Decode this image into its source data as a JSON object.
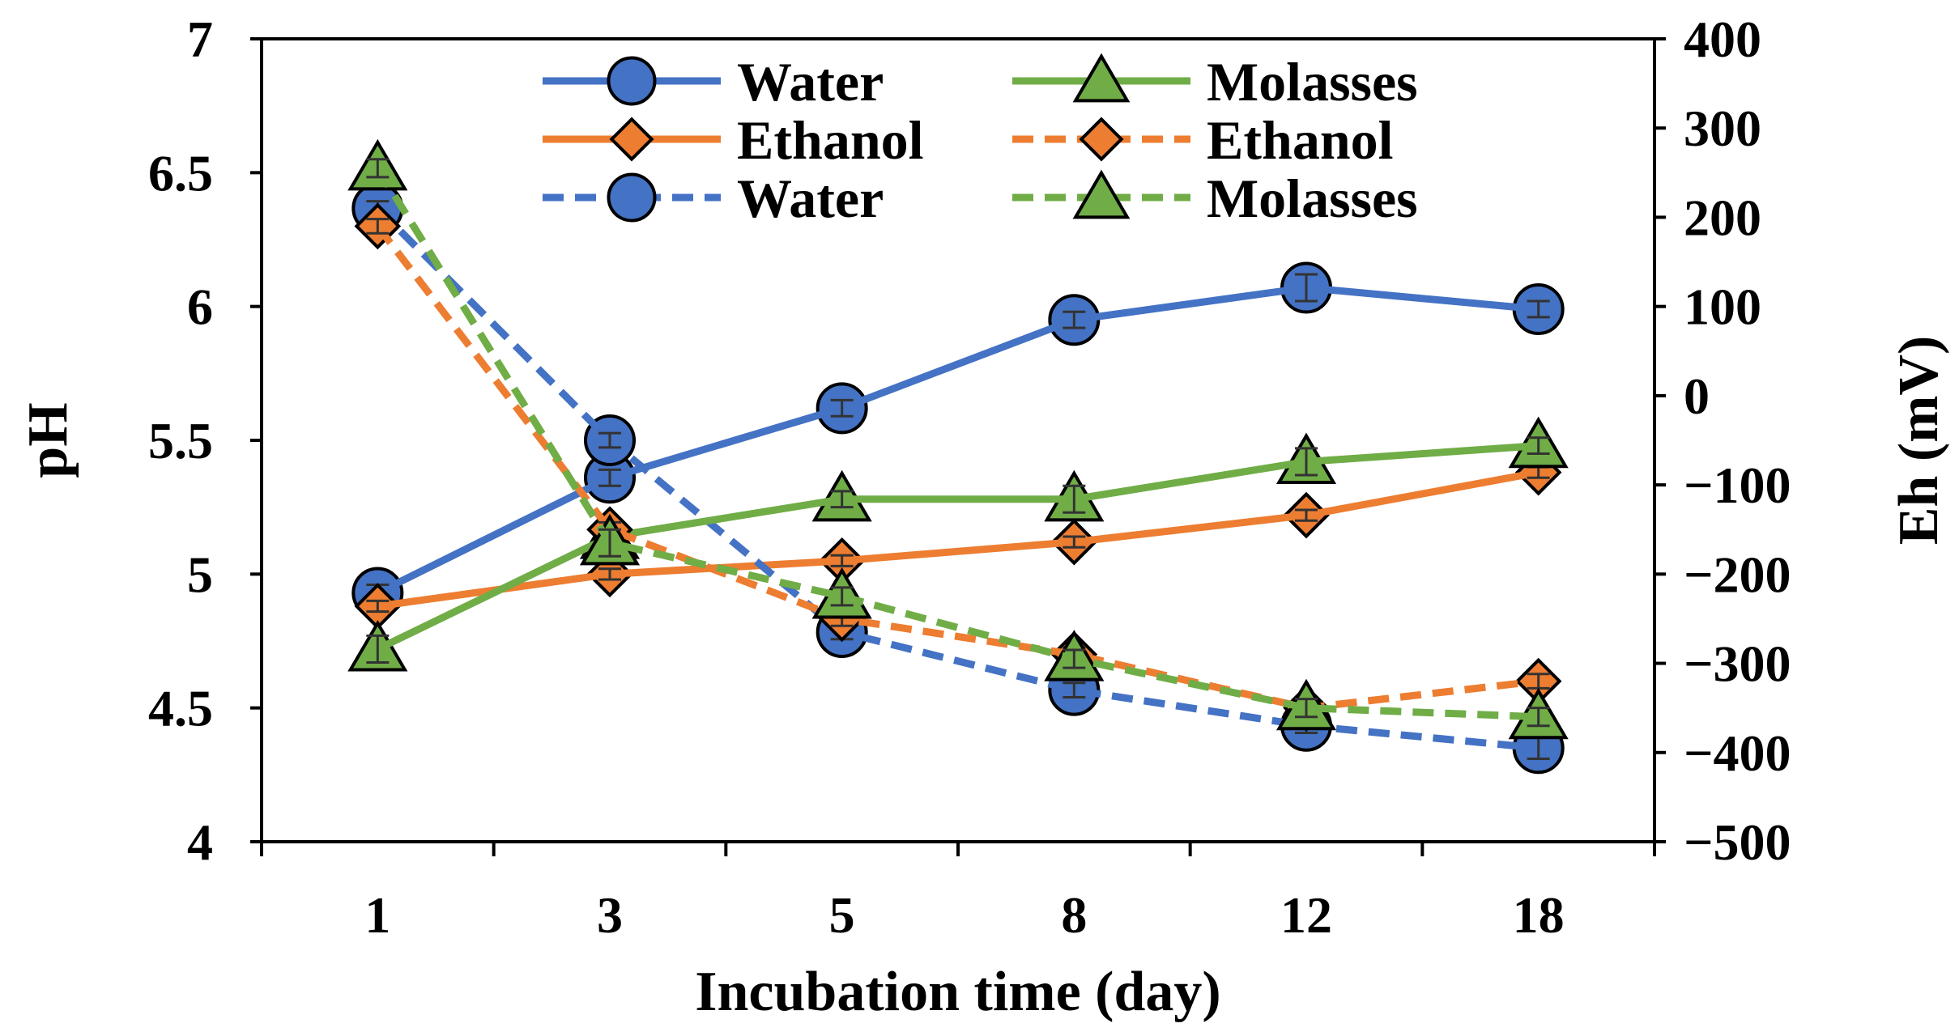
{
  "chart_data": {
    "type": "line",
    "title": "",
    "xlabel": "Incubation time (day)",
    "ylabel_left": "pH",
    "ylabel_right": "Eh (mV)",
    "categories": [
      "1",
      "3",
      "5",
      "8",
      "12",
      "18"
    ],
    "ylim_left": [
      4,
      7
    ],
    "ylim_right": [
      -500,
      400
    ],
    "yticks_left": [
      "4",
      "4.5",
      "5",
      "5.5",
      "6",
      "6.5",
      "7"
    ],
    "yticks_right": [
      "-500",
      "-400",
      "-300",
      "-200",
      "-100",
      "0",
      "100",
      "200",
      "300",
      "400"
    ],
    "grid": false,
    "legend": "top-center",
    "series": [
      {
        "name": "Water",
        "axis": "left",
        "style": "solid",
        "marker": "circle",
        "color": "#4472C4",
        "values": [
          4.93,
          5.36,
          5.62,
          5.95,
          6.07,
          5.99
        ],
        "err": [
          0.03,
          0.03,
          0.03,
          0.03,
          0.05,
          0.03
        ]
      },
      {
        "name": "Ethanol",
        "axis": "left",
        "style": "solid",
        "marker": "diamond",
        "color": "#ED7D31",
        "values": [
          4.88,
          5.0,
          5.05,
          5.12,
          5.22,
          5.38
        ],
        "err": [
          0.02,
          0.02,
          0.02,
          0.02,
          0.02,
          0.02
        ]
      },
      {
        "name": "Water",
        "axis": "right",
        "style": "dashed",
        "marker": "circle",
        "color": "#4472C4",
        "values": [
          210,
          -50,
          -265,
          -330,
          -370,
          -395
        ],
        "err": [
          8,
          8,
          8,
          8,
          8,
          12
        ]
      },
      {
        "name": "Molasses",
        "axis": "left",
        "style": "solid",
        "marker": "triangle",
        "color": "#70AD47",
        "values": [
          4.72,
          5.14,
          5.28,
          5.28,
          5.42,
          5.48
        ],
        "err": [
          0.05,
          0.05,
          0.03,
          0.05,
          0.05,
          0.03
        ]
      },
      {
        "name": "Ethanol",
        "axis": "right",
        "style": "dashed",
        "marker": "diamond",
        "color": "#ED7D31",
        "values": [
          190,
          -150,
          -250,
          -290,
          -350,
          -320
        ],
        "err": [
          8,
          8,
          8,
          8,
          8,
          8
        ]
      },
      {
        "name": "Molasses",
        "axis": "right",
        "style": "dashed",
        "marker": "triangle",
        "color": "#70AD47",
        "values": [
          255,
          -165,
          -225,
          -295,
          -350,
          -360
        ],
        "err": [
          10,
          15,
          10,
          10,
          10,
          10
        ]
      }
    ]
  }
}
